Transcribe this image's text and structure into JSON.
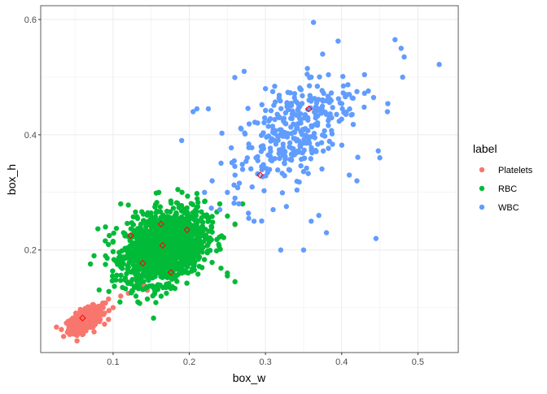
{
  "chart_data": {
    "type": "scatter",
    "title": "",
    "xlabel": "box_w",
    "ylabel": "box_h",
    "xlim": [
      0.005,
      0.553
    ],
    "ylim": [
      0.022,
      0.624
    ],
    "x_ticks": [
      0.1,
      0.2,
      0.3,
      0.4,
      0.5
    ],
    "x_tick_labels": [
      "0.1",
      "0.2",
      "0.3",
      "0.4",
      "0.5"
    ],
    "y_ticks": [
      0.2,
      0.4,
      0.6
    ],
    "y_tick_labels": [
      "0.2",
      "0.4",
      "0.6"
    ],
    "grid": true,
    "legend": {
      "title": "label",
      "placement": "right",
      "entries": [
        "Platelets",
        "RBC",
        "WBC"
      ]
    },
    "series": [
      {
        "name": "Platelets",
        "color": "#F8766D",
        "cluster": {
          "n": 320,
          "center": [
            0.064,
            0.079
          ],
          "sd": [
            0.011,
            0.011
          ],
          "corr": 0.6
        },
        "points": [
          [
            0.094,
            0.115
          ],
          [
            0.1,
            0.1
          ],
          [
            0.11,
            0.12
          ],
          [
            0.12,
            0.125
          ],
          [
            0.13,
            0.135
          ],
          [
            0.14,
            0.14
          ],
          [
            0.145,
            0.13
          ],
          [
            0.035,
            0.05
          ],
          [
            0.045,
            0.055
          ],
          [
            0.05,
            0.06
          ],
          [
            0.04,
            0.072
          ],
          [
            0.085,
            0.1
          ],
          [
            0.09,
            0.108
          ],
          [
            0.26,
            0.244
          ],
          [
            0.075,
            0.058
          ]
        ],
        "mean": [
          0.06,
          0.082
        ]
      },
      {
        "name": "RBC",
        "color": "#00BA38",
        "cluster": {
          "n": 1600,
          "center": [
            0.168,
            0.206
          ],
          "sd": [
            0.026,
            0.031
          ],
          "corr": 0.3
        },
        "points": [
          [
            0.16,
            0.3
          ],
          [
            0.11,
            0.28
          ],
          [
            0.12,
            0.278
          ],
          [
            0.09,
            0.24
          ],
          [
            0.095,
            0.225
          ],
          [
            0.075,
            0.19
          ],
          [
            0.09,
            0.175
          ],
          [
            0.135,
            0.135
          ],
          [
            0.155,
            0.128
          ],
          [
            0.17,
            0.125
          ],
          [
            0.25,
            0.155
          ],
          [
            0.26,
            0.145
          ],
          [
            0.27,
            0.28
          ],
          [
            0.26,
            0.245
          ],
          [
            0.1,
            0.215
          ],
          [
            0.185,
            0.305
          ],
          [
            0.21,
            0.298
          ],
          [
            0.13,
            0.12
          ],
          [
            0.145,
            0.115
          ],
          [
            0.24,
            0.28
          ],
          [
            0.25,
            0.16
          ]
        ],
        "means": [
          [
            0.123,
            0.225
          ],
          [
            0.163,
            0.245
          ],
          [
            0.165,
            0.208
          ],
          [
            0.197,
            0.235
          ],
          [
            0.139,
            0.177
          ],
          [
            0.176,
            0.161
          ]
        ]
      },
      {
        "name": "WBC",
        "color": "#619CFF",
        "cluster": {
          "n": 330,
          "center": [
            0.335,
            0.405
          ],
          "sd": [
            0.038,
            0.05
          ],
          "corr": 0.55
        },
        "points": [
          [
            0.47,
            0.565
          ],
          [
            0.478,
            0.55
          ],
          [
            0.482,
            0.535
          ],
          [
            0.48,
            0.5
          ],
          [
            0.528,
            0.522
          ],
          [
            0.363,
            0.595
          ],
          [
            0.375,
            0.54
          ],
          [
            0.445,
            0.22
          ],
          [
            0.32,
            0.2
          ],
          [
            0.35,
            0.2
          ],
          [
            0.38,
            0.23
          ],
          [
            0.205,
            0.44
          ],
          [
            0.19,
            0.39
          ],
          [
            0.272,
            0.51
          ],
          [
            0.285,
            0.25
          ],
          [
            0.278,
            0.255
          ],
          [
            0.24,
            0.27
          ],
          [
            0.22,
            0.3
          ],
          [
            0.45,
            0.36
          ],
          [
            0.448,
            0.372
          ],
          [
            0.41,
            0.47
          ],
          [
            0.42,
            0.475
          ],
          [
            0.43,
            0.472
          ],
          [
            0.46,
            0.44
          ],
          [
            0.41,
            0.33
          ],
          [
            0.42,
            0.32
          ],
          [
            0.23,
            0.32
          ],
          [
            0.25,
            0.3
          ],
          [
            0.26,
            0.29
          ],
          [
            0.21,
            0.445
          ],
          [
            0.225,
            0.445
          ],
          [
            0.36,
            0.5
          ],
          [
            0.355,
            0.515
          ],
          [
            0.3,
            0.48
          ],
          [
            0.27,
            0.34
          ],
          [
            0.26,
            0.33
          ],
          [
            0.36,
            0.25
          ],
          [
            0.37,
            0.26
          ],
          [
            0.31,
            0.27
          ]
        ],
        "means": [
          [
            0.293,
            0.33
          ],
          [
            0.357,
            0.445
          ]
        ]
      }
    ],
    "mean_marker": {
      "shape": "open-diamond",
      "color": "#FF0000"
    }
  }
}
